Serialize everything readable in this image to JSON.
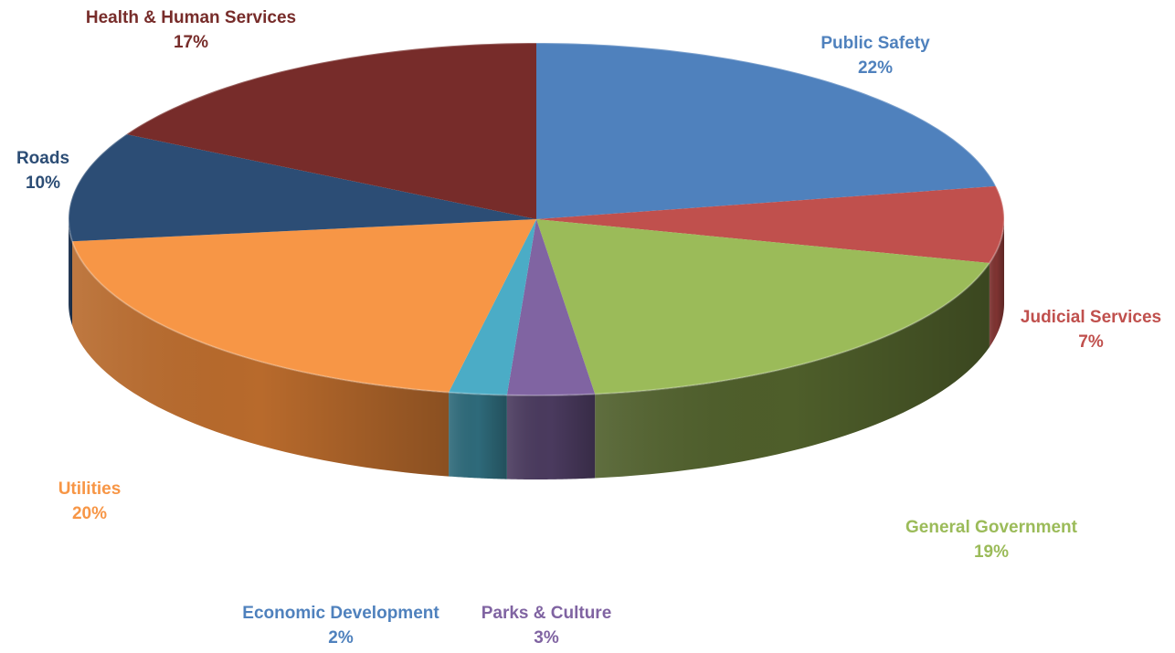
{
  "chart_data": {
    "type": "pie",
    "style": "3d-exploded-flat",
    "title": "",
    "slices": [
      {
        "name": "Public Safety",
        "value": 22,
        "value_label": "22%",
        "color": "#4F81BD",
        "side_color": "#3A5F8C"
      },
      {
        "name": "Judicial Services",
        "value": 7,
        "value_label": "7%",
        "color": "#C0504D",
        "side_color": "#7E3331"
      },
      {
        "name": "General Government",
        "value": 19,
        "value_label": "19%",
        "color": "#9BBB59",
        "side_color": "#4E5E2A"
      },
      {
        "name": "Parks & Culture",
        "value": 3,
        "value_label": "3%",
        "color": "#8064A2",
        "side_color": "#4A3A5E"
      },
      {
        "name": "Economic Development",
        "value": 2,
        "value_label": "2%",
        "color": "#4BACC6",
        "side_color": "#2E6A7A"
      },
      {
        "name": "Utilities",
        "value": 20,
        "value_label": "20%",
        "color": "#F79646",
        "side_color": "#B86A2C"
      },
      {
        "name": "Roads",
        "value": 10,
        "value_label": "10%",
        "color": "#2C4D75",
        "side_color": "#1D3350"
      },
      {
        "name": "Health & Human Services",
        "value": 17,
        "value_label": "17%",
        "color": "#772C2A",
        "side_color": "#4E1C1B"
      }
    ],
    "label_colors": {
      "Public Safety": "#4F81BD",
      "Judicial Services": "#C0504D",
      "General Government": "#9BBB59",
      "Parks & Culture": "#8064A2",
      "Economic Development": "#4F81BD",
      "Utilities": "#F79646",
      "Roads": "#2C4D75",
      "Health & Human Services": "#772C2A"
    }
  }
}
